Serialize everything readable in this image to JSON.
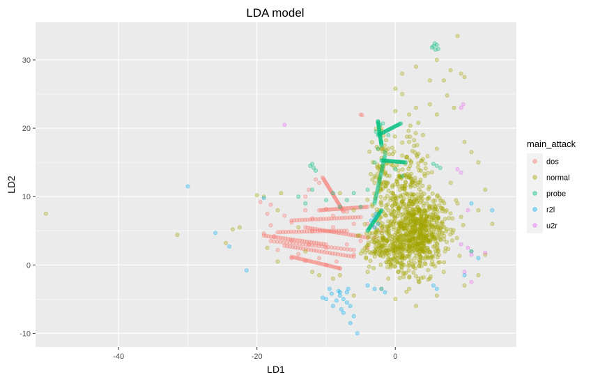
{
  "chart_data": {
    "type": "scatter",
    "title": "LDA model",
    "xlabel": "LD1",
    "ylabel": "LD2",
    "xlim": [
      -52,
      17.5
    ],
    "ylim": [
      -12,
      35.5
    ],
    "x_ticks": [
      -40,
      -20,
      0
    ],
    "y_ticks": [
      -10,
      0,
      10,
      20,
      30
    ],
    "grid": true,
    "panel_background": "#ebebeb",
    "point_alpha": 0.3,
    "legend": {
      "title": "main_attack",
      "position": "right",
      "entries": [
        {
          "label": "dos",
          "color": "#f8766d"
        },
        {
          "label": "normal",
          "color": "#a3a500"
        },
        {
          "label": "probe",
          "color": "#00bf7d"
        },
        {
          "label": "r2l",
          "color": "#00b0f6"
        },
        {
          "label": "u2r",
          "color": "#e76bf3"
        }
      ]
    },
    "series": [
      {
        "name": "dos",
        "color": "#f8766d",
        "points": [
          [
            -5,
            22
          ],
          [
            -4.8,
            21.9
          ],
          [
            -19.5,
            9.2
          ],
          [
            -18,
            8.8
          ],
          [
            -18.5,
            7.5
          ],
          [
            -11.5,
            12.5
          ],
          [
            -11,
            12
          ],
          [
            -13,
            10
          ],
          [
            -12.5,
            11
          ],
          [
            -19,
            4.6
          ],
          [
            -17.5,
            4.2
          ],
          [
            -15,
            3.6
          ],
          [
            -12.5,
            3
          ],
          [
            -10,
            2.5
          ],
          [
            -17,
            2.2
          ],
          [
            -14,
            1.6
          ],
          [
            -11,
            1
          ],
          [
            -8.5,
            0.5
          ],
          [
            -6,
            1.5
          ],
          [
            -4,
            2.5
          ],
          [
            -15,
            1
          ],
          [
            -13,
            0.6
          ],
          [
            -10,
            0
          ],
          [
            -8,
            -0.5
          ],
          [
            -18,
            5.8
          ],
          [
            -15,
            6.2
          ],
          [
            -12,
            6.8
          ],
          [
            -9,
            7.2
          ],
          [
            -7,
            7.8
          ],
          [
            -12,
            5
          ],
          [
            -9,
            5.5
          ],
          [
            -6,
            6
          ],
          [
            -4,
            6
          ],
          [
            -3,
            5.5
          ],
          [
            -2,
            5
          ],
          [
            -16,
            7.2
          ],
          [
            -10,
            8.2
          ],
          [
            -13,
            8
          ],
          [
            -5,
            3.5
          ],
          [
            -3,
            4
          ],
          [
            -7,
            3
          ]
        ],
        "lines": [
          [
            [
              -17,
              4.8
            ],
            [
              -7,
              5
            ]
          ],
          [
            [
              -18,
              3.5
            ],
            [
              -6,
              2.2
            ]
          ],
          [
            [
              -16,
              2.8
            ],
            [
              -6,
              1.2
            ]
          ],
          [
            [
              -15,
              1.2
            ],
            [
              -8,
              -0.5
            ]
          ],
          [
            [
              -15,
              6.5
            ],
            [
              -5,
              7
            ]
          ],
          [
            [
              -11,
              8
            ],
            [
              -4,
              8.5
            ]
          ],
          [
            [
              -13,
              5.5
            ],
            [
              -4,
              4
            ]
          ],
          [
            [
              -10.5,
              12.8
            ],
            [
              -7.5,
              7.8
            ]
          ],
          [
            [
              -19,
              4.3
            ],
            [
              -10,
              3
            ]
          ]
        ]
      },
      {
        "name": "normal",
        "color": "#a3a500",
        "points": [
          [
            -50.5,
            7.5
          ],
          [
            -31.5,
            4.4
          ],
          [
            -23.5,
            5.2
          ],
          [
            -24.5,
            3.2
          ],
          [
            -22.5,
            5.5
          ],
          [
            -20,
            10.2
          ],
          [
            -19,
            10
          ],
          [
            -17,
            8
          ],
          [
            -16.5,
            10.5
          ],
          [
            -18.5,
            2.5
          ],
          [
            -17,
            0.5
          ],
          [
            -14,
            5.5
          ],
          [
            -13,
            2
          ],
          [
            -12,
            -1
          ],
          [
            -11,
            -1.5
          ],
          [
            -9,
            -2
          ],
          [
            -8,
            -1.5
          ],
          [
            -6,
            -4.5
          ],
          [
            -3,
            13
          ],
          [
            -2,
            20
          ],
          [
            -1,
            17
          ],
          [
            0,
            25.8
          ],
          [
            1,
            25
          ],
          [
            2,
            22
          ],
          [
            3,
            23
          ],
          [
            4,
            19
          ],
          [
            5,
            23.5
          ],
          [
            6,
            22
          ],
          [
            7,
            27
          ],
          [
            8,
            28.5
          ],
          [
            9,
            33.5
          ],
          [
            9.5,
            28
          ],
          [
            10,
            27.5
          ],
          [
            7.5,
            24.8
          ],
          [
            8.5,
            23
          ],
          [
            10,
            18
          ],
          [
            11,
            16.5
          ],
          [
            12,
            15
          ],
          [
            13,
            11
          ],
          [
            12,
            8
          ],
          [
            14,
            6
          ],
          [
            11,
            2
          ],
          [
            12,
            -1.5
          ],
          [
            13,
            1.5
          ],
          [
            10,
            -3
          ],
          [
            6,
            -4.5
          ],
          [
            3,
            -6
          ],
          [
            0,
            -5
          ],
          [
            -2,
            -3.5
          ],
          [
            -4,
            -1
          ],
          [
            -6,
            8
          ],
          [
            -8,
            10.5
          ],
          [
            -3,
            12
          ],
          [
            1,
            16
          ],
          [
            4,
            15.5
          ],
          [
            6,
            17
          ],
          [
            8,
            12
          ],
          [
            9,
            9
          ],
          [
            7,
            -1
          ],
          [
            5,
            -2
          ],
          [
            2,
            -3.5
          ],
          [
            -1,
            -2
          ],
          [
            3,
            29
          ],
          [
            6,
            30
          ],
          [
            0,
            22.5
          ],
          [
            2,
            18
          ],
          [
            5,
            27
          ],
          [
            1,
            28
          ]
        ],
        "clusters": [
          {
            "center": [
              2.5,
              5
            ],
            "spread": [
              5,
              6
            ],
            "n": 500
          },
          {
            "center": [
              -0.5,
              2.5
            ],
            "spread": [
              4,
              3
            ],
            "n": 200
          },
          {
            "center": [
              4,
              5
            ],
            "spread": [
              3,
              5
            ],
            "n": 200
          },
          {
            "center": [
              -2,
              13
            ],
            "spread": [
              1.5,
              6
            ],
            "n": 80
          },
          {
            "center": [
              2,
              12
            ],
            "spread": [
              3,
              7
            ],
            "n": 150
          }
        ]
      },
      {
        "name": "probe",
        "color": "#00bf7d",
        "points": [
          [
            5.5,
            32
          ],
          [
            5.8,
            31.5
          ],
          [
            6,
            32.2
          ],
          [
            5.3,
            31.8
          ],
          [
            6.2,
            31.6
          ],
          [
            5.7,
            32.4
          ],
          [
            -2.5,
            21
          ],
          [
            -2.2,
            20.5
          ],
          [
            -1.8,
            20.7
          ],
          [
            -2.8,
            19.5
          ],
          [
            -12,
            14.8
          ],
          [
            -11.8,
            14.2
          ],
          [
            -12.3,
            14.5
          ],
          [
            -11.5,
            13.8
          ],
          [
            5.5,
            14.8
          ],
          [
            6,
            14.5
          ],
          [
            6.5,
            14.2
          ],
          [
            -14,
            10
          ],
          [
            -13,
            9
          ],
          [
            -12,
            11
          ],
          [
            -10,
            9.5
          ],
          [
            -9,
            10.5
          ],
          [
            -8,
            8.5
          ],
          [
            -7,
            9.5
          ],
          [
            -6,
            10.5
          ],
          [
            -5,
            8.5
          ],
          [
            -4,
            11
          ],
          [
            -3,
            15
          ],
          [
            -2,
            18
          ],
          [
            -1,
            19
          ],
          [
            0,
            14
          ],
          [
            1,
            13
          ],
          [
            -1.5,
            16.5
          ],
          [
            -2.5,
            17
          ]
        ],
        "lines": [
          [
            [
              -2.5,
              21
            ],
            [
              -2,
              17.5
            ]
          ],
          [
            [
              -2.5,
              19
            ],
            [
              0.8,
              20.7
            ]
          ],
          [
            [
              -2,
              15.3
            ],
            [
              1.5,
              15
            ]
          ],
          [
            [
              -3,
              9
            ],
            [
              -1.5,
              16
            ]
          ],
          [
            [
              -4,
              5
            ],
            [
              -2,
              8
            ]
          ]
        ]
      },
      {
        "name": "r2l",
        "color": "#00b0f6",
        "points": [
          [
            -30,
            11.5
          ],
          [
            -19,
            9.8
          ],
          [
            -26,
            4.7
          ],
          [
            -24,
            2.7
          ],
          [
            -21.5,
            -0.8
          ],
          [
            -8,
            -4.5
          ],
          [
            -7.5,
            -5
          ],
          [
            -7,
            -5.5
          ],
          [
            -6.5,
            -6
          ],
          [
            -8.5,
            -5.2
          ],
          [
            -9,
            -6
          ],
          [
            -7.8,
            -6.5
          ],
          [
            -7,
            -4
          ],
          [
            -6,
            -7.5
          ],
          [
            -8,
            -4
          ],
          [
            -9.5,
            -3.5
          ],
          [
            -10,
            -5
          ],
          [
            -5.5,
            -10
          ],
          [
            -6.5,
            -8.5
          ],
          [
            -4,
            -3
          ],
          [
            -3,
            -3.5
          ],
          [
            -2,
            -3.5
          ],
          [
            -1.5,
            -4
          ],
          [
            5.5,
            -3
          ],
          [
            6,
            -3.5
          ],
          [
            10,
            -1.5
          ],
          [
            11,
            2
          ],
          [
            12,
            1
          ],
          [
            14,
            8
          ],
          [
            11,
            9
          ],
          [
            -3.5,
            6.5
          ],
          [
            -3,
            7
          ],
          [
            -2.8,
            7.5
          ],
          [
            -3,
            5.5
          ],
          [
            -2.5,
            6
          ],
          [
            -10.5,
            -4.8
          ],
          [
            -9.2,
            -4.2
          ],
          [
            -8.2,
            -3.8
          ],
          [
            -7.5,
            -7
          ],
          [
            -6.8,
            -3.5
          ]
        ]
      },
      {
        "name": "u2r",
        "color": "#e76bf3",
        "points": [
          [
            -16,
            20.5
          ],
          [
            9.5,
            23
          ],
          [
            9.8,
            23.5
          ],
          [
            11,
            1.5
          ],
          [
            13,
            1.8
          ],
          [
            11,
            -2.5
          ],
          [
            9.5,
            13.5
          ],
          [
            10.5,
            8
          ],
          [
            9.5,
            3
          ],
          [
            10,
            -1
          ],
          [
            9,
            14
          ],
          [
            10.5,
            2.5
          ]
        ]
      }
    ]
  }
}
